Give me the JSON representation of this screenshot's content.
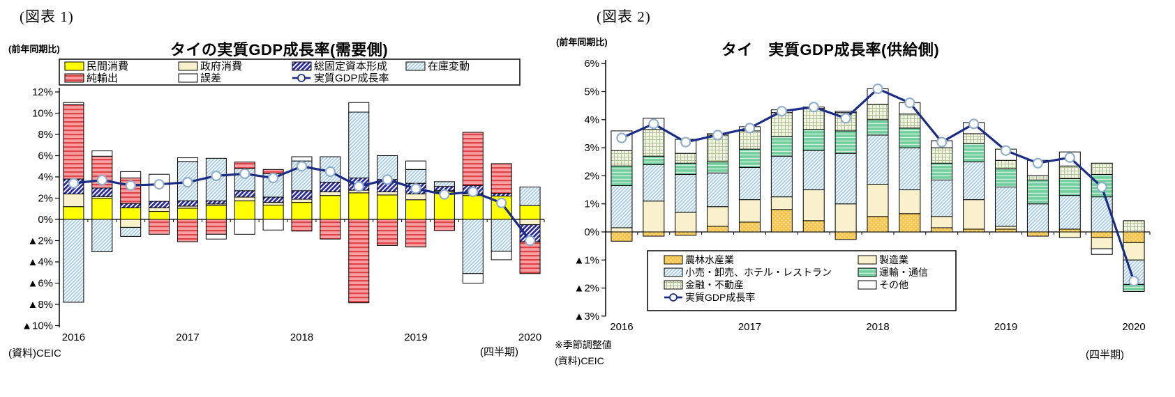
{
  "figure1": {
    "label": "(図表 1)",
    "axis_note": "(前年同期比)",
    "source": "(資料)CEIC",
    "x_unit": "(四半期)"
  },
  "figure2": {
    "label": "(図表 2)",
    "axis_note": "(前年同期比)",
    "note": "※季節調整値",
    "source": "(資料)CEIC",
    "x_unit": "(四半期)"
  },
  "colors": {
    "private_consumption": "#FFFF00",
    "government_consumption": "#F8F1CB",
    "fixed_capital_hatch": "#2B2BA0",
    "inventory_hatch": "#A9CDE9",
    "net_export_stripe": "#DE4348",
    "net_export_bg": "#FA9FA1",
    "error_white": "#FFFFFF",
    "agriculture_bg": "#F6C44C",
    "agriculture_dot": "#FCE9AC",
    "manufacturing": "#F8F1CB",
    "retail_hatch": "#A9CDE9",
    "transport_bg": "#6FCE9B",
    "transport_stripe": "#CFF0DF",
    "finance_bg": "#F3F4E3",
    "finance_grid": "#AFC295",
    "gdp_line": "#1B2C85",
    "marker_stroke": "#8FAECB"
  },
  "chart_data": [
    {
      "type": "bar",
      "subtype": "stacked-contribution-with-line",
      "title": "タイの実質GDP成長率(需要側)",
      "xlabel": "(四半期)",
      "ylabel": "(前年同期比)",
      "ylim": [
        -10,
        12
      ],
      "grid": false,
      "legend_position": "top-inside-box",
      "x": [
        "2016Q1",
        "2016Q2",
        "2016Q3",
        "2016Q4",
        "2017Q1",
        "2017Q2",
        "2017Q3",
        "2017Q4",
        "2018Q1",
        "2018Q2",
        "2018Q3",
        "2018Q4",
        "2019Q1",
        "2019Q2",
        "2019Q3",
        "2019Q4",
        "2020Q1"
      ],
      "x_year_labels": [
        "2016",
        "2017",
        "2018",
        "2019",
        "2020"
      ],
      "x_year_positions": [
        0,
        4,
        8,
        12,
        16
      ],
      "y_ticks": [
        {
          "v": 12,
          "label": "12%"
        },
        {
          "v": 10,
          "label": "10%"
        },
        {
          "v": 8,
          "label": "8%"
        },
        {
          "v": 6,
          "label": "6%"
        },
        {
          "v": 4,
          "label": "4%"
        },
        {
          "v": 2,
          "label": "2%"
        },
        {
          "v": 0,
          "label": "0%"
        },
        {
          "v": -2,
          "label": "▲2%"
        },
        {
          "v": -4,
          "label": "▲4%"
        },
        {
          "v": -6,
          "label": "▲6%"
        },
        {
          "v": -8,
          "label": "▲8%"
        },
        {
          "v": -10,
          "label": "▲10%"
        }
      ],
      "series": [
        {
          "name": "民間消費",
          "style": "yellow",
          "values": [
            1.2,
            2.0,
            1.1,
            0.75,
            1.05,
            1.3,
            1.75,
            1.35,
            1.6,
            2.25,
            2.5,
            2.3,
            1.85,
            2.6,
            2.25,
            2.2,
            1.3
          ]
        },
        {
          "name": "政府消費",
          "style": "cream",
          "values": [
            1.2,
            0.15,
            -0.75,
            0.35,
            0.2,
            0.15,
            0.35,
            0.25,
            0.3,
            0.35,
            0.25,
            0.3,
            0.55,
            0.1,
            0.15,
            0,
            -0.5
          ]
        },
        {
          "name": "総固定資本形成",
          "style": "hatch-blue",
          "values": [
            1.4,
            0.8,
            0.4,
            0.6,
            0.5,
            0.3,
            0.6,
            0.5,
            0.8,
            0.9,
            1.15,
            1.15,
            1.0,
            0.4,
            0.8,
            0.25,
            -1.6
          ]
        },
        {
          "name": "在庫変動",
          "style": "hatch-lightblue",
          "values": [
            -7.8,
            -3.05,
            -0.85,
            0,
            3.7,
            4.0,
            2.1,
            2.2,
            2.8,
            2.4,
            6.2,
            2.25,
            1.3,
            0.45,
            -5.1,
            -3.0,
            1.75
          ]
        },
        {
          "name": "純輸出",
          "style": "stripe-red",
          "values": [
            7.0,
            3.0,
            2.4,
            -1.4,
            -2.1,
            -1.4,
            0.6,
            0.4,
            -1.1,
            -1.85,
            -7.85,
            -2.45,
            -2.6,
            -1.05,
            5.0,
            2.8,
            -3.0
          ]
        },
        {
          "name": "誤差",
          "style": "white",
          "values": [
            0.2,
            0.5,
            0.6,
            2.55,
            0.35,
            -0.45,
            -1.4,
            -1.0,
            0.4,
            0,
            0.9,
            0,
            0.8,
            0,
            -0.9,
            -0.8,
            0
          ]
        }
      ],
      "line": {
        "name": "実質GDP成長率",
        "values": [
          3.4,
          3.7,
          3.2,
          3.3,
          3.5,
          4.1,
          4.3,
          3.9,
          5.0,
          4.5,
          3.1,
          3.75,
          2.9,
          2.35,
          2.6,
          1.55,
          -2.0
        ]
      }
    },
    {
      "type": "bar",
      "subtype": "stacked-contribution-with-line",
      "title": "タイ　実質GDP成長率(供給側)",
      "xlabel": "(四半期)",
      "ylabel": "(前年同期比)",
      "ylim": [
        -3,
        6
      ],
      "grid": false,
      "legend_position": "bottom-inside-box",
      "x": [
        "2016Q1",
        "2016Q2",
        "2016Q3",
        "2016Q4",
        "2017Q1",
        "2017Q2",
        "2017Q3",
        "2017Q4",
        "2018Q1",
        "2018Q2",
        "2018Q3",
        "2018Q4",
        "2019Q1",
        "2019Q2",
        "2019Q3",
        "2019Q4",
        "2020Q1"
      ],
      "x_year_labels": [
        "2016",
        "2017",
        "2018",
        "2019",
        "2020"
      ],
      "x_year_positions": [
        0,
        4,
        8,
        12,
        16
      ],
      "y_ticks": [
        {
          "v": 6,
          "label": "6%"
        },
        {
          "v": 5,
          "label": "5%"
        },
        {
          "v": 4,
          "label": "4%"
        },
        {
          "v": 3,
          "label": "3%"
        },
        {
          "v": 2,
          "label": "2%"
        },
        {
          "v": 1,
          "label": "1%"
        },
        {
          "v": 0,
          "label": "0%"
        },
        {
          "v": -1,
          "label": "▲1%"
        },
        {
          "v": -2,
          "label": "▲2%"
        },
        {
          "v": -3,
          "label": "▲3%"
        }
      ],
      "series": [
        {
          "name": "農林水産業",
          "style": "dots-orange",
          "values": [
            -0.33,
            -0.15,
            -0.12,
            0.2,
            0.35,
            0.8,
            0.4,
            -0.27,
            0.55,
            0.65,
            0.15,
            0.1,
            0.1,
            -0.15,
            0.1,
            -0.2,
            -0.38
          ]
        },
        {
          "name": "製造業",
          "style": "cream",
          "values": [
            0.15,
            1.1,
            0.7,
            0.7,
            0.8,
            0.45,
            1.1,
            1.0,
            1.15,
            0.85,
            0.4,
            1.05,
            0.1,
            0,
            -0.2,
            -0.4,
            -0.62
          ]
        },
        {
          "name": "小売・卸売、ホテル・レストラン",
          "style": "hatch-lightblue",
          "values": [
            1.5,
            1.3,
            1.35,
            1.2,
            1.15,
            1.45,
            1.4,
            1.8,
            1.75,
            1.5,
            1.3,
            1.35,
            1.4,
            1.0,
            1.2,
            1.25,
            -0.87
          ]
        },
        {
          "name": "運輸・通信",
          "style": "stripe-green",
          "values": [
            0.7,
            0.3,
            0.4,
            0.4,
            0.65,
            0.7,
            0.75,
            0.8,
            0.55,
            0.7,
            0.6,
            0.65,
            0.65,
            0.85,
            0.6,
            0.8,
            -0.25
          ]
        },
        {
          "name": "金融・不動産",
          "style": "grid-pale",
          "values": [
            0.55,
            0.95,
            0.35,
            0.95,
            0.65,
            0.85,
            0.75,
            0.65,
            0.55,
            0.5,
            0.55,
            0.35,
            0.3,
            0.15,
            0.45,
            0.4,
            0.4
          ]
        },
        {
          "name": "その他",
          "style": "white",
          "values": [
            0.7,
            0.4,
            0.5,
            0.05,
            0.15,
            0.1,
            0.05,
            0.05,
            0.55,
            0.4,
            0.25,
            0.4,
            0.4,
            0.55,
            0.5,
            -0.2,
            0
          ]
        }
      ],
      "line": {
        "name": "実質GDP成長率",
        "values": [
          3.35,
          3.85,
          3.2,
          3.45,
          3.7,
          4.3,
          4.45,
          4.05,
          5.1,
          4.6,
          3.2,
          3.85,
          2.9,
          2.45,
          2.65,
          1.6,
          -1.75
        ]
      }
    }
  ]
}
